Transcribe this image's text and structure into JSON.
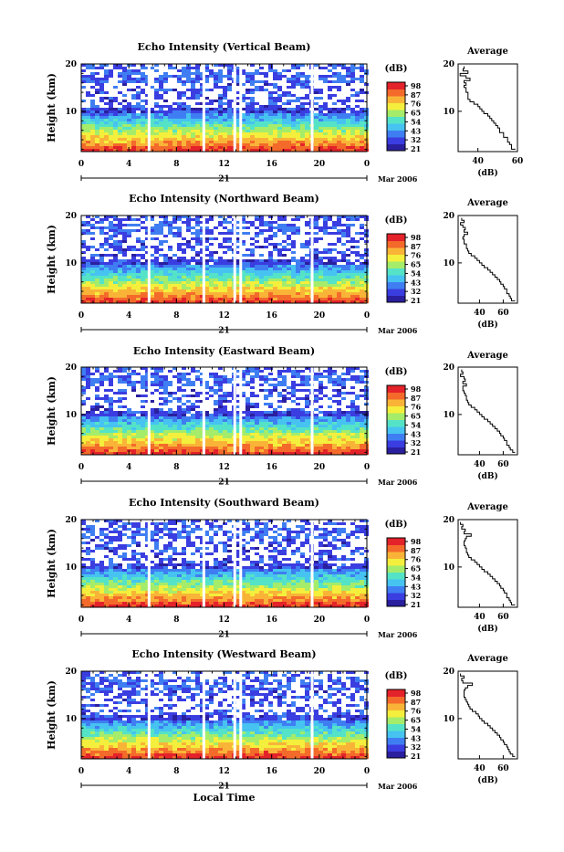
{
  "chart_data": [
    {
      "type": "heatmap",
      "title": "Echo Intensity (Vertical Beam)",
      "ylabel": "Height (km)",
      "yticks": [
        "20",
        "10"
      ],
      "ylim": [
        1.5,
        20
      ],
      "xticks": [
        "0",
        "4",
        "8",
        "12",
        "16",
        "20",
        "0"
      ],
      "xlim": [
        0,
        24
      ],
      "date_day": "21",
      "date_suffix": "Mar 2006",
      "colorbar_unit": "(dB)",
      "colorbar_ticks": [
        "98",
        "87",
        "76",
        "65",
        "54",
        "43",
        "32",
        "21"
      ],
      "gaps_hours": [
        5.7,
        10.3,
        12.9,
        13.4,
        19.4
      ],
      "avg_title": "Average",
      "avg_xlabel": "(dB)",
      "avg_xticks": [
        "40",
        "60"
      ],
      "avg_xlim": [
        30,
        60
      ],
      "avg_yticks": [
        "20",
        "10"
      ],
      "avg_profile": {
        "height": [
          19.5,
          19,
          18.5,
          18,
          17.5,
          17,
          16.5,
          16,
          15.5,
          15,
          14.5,
          14,
          13.5,
          13,
          12.5,
          12,
          11.5,
          11,
          10.5,
          10,
          9.5,
          9,
          8.5,
          8,
          7.5,
          7,
          6.5,
          6,
          5.5,
          5,
          4.5,
          4,
          3.5,
          3,
          2.5,
          2
        ],
        "db": [
          33,
          32.5,
          35,
          31,
          34,
          36,
          33,
          34,
          33,
          34,
          34,
          35,
          35,
          35,
          36,
          38,
          40,
          41,
          42,
          43,
          45,
          46,
          47,
          48,
          49,
          50,
          51,
          51,
          53,
          53,
          55,
          55,
          56,
          57,
          57,
          59
        ]
      }
    },
    {
      "type": "heatmap",
      "title": "Echo Intensity (Northward Beam)",
      "ylabel": "Height (km)",
      "yticks": [
        "20",
        "10"
      ],
      "ylim": [
        1.5,
        20
      ],
      "xticks": [
        "0",
        "4",
        "8",
        "12",
        "16",
        "20",
        "0"
      ],
      "xlim": [
        0,
        24
      ],
      "date_day": "21",
      "date_suffix": "Mar 2006",
      "colorbar_unit": "(dB)",
      "colorbar_ticks": [
        "98",
        "87",
        "76",
        "65",
        "54",
        "43",
        "32",
        "21"
      ],
      "gaps_hours": [
        5.7,
        10.3,
        12.9,
        13.4,
        19.4
      ],
      "avg_title": "Average",
      "avg_xlabel": "(dB)",
      "avg_xticks": [
        "40",
        "60"
      ],
      "avg_xlim": [
        22,
        72
      ],
      "avg_yticks": [
        "20",
        "10"
      ],
      "avg_profile": {
        "height": [
          19.5,
          19,
          18.5,
          18,
          17.5,
          17,
          16.5,
          16,
          15.5,
          15,
          14.5,
          14,
          13.5,
          13,
          12.5,
          12,
          11.5,
          11,
          10.5,
          10,
          9.5,
          9,
          8.5,
          8,
          7.5,
          7,
          6.5,
          6,
          5.5,
          5,
          4.5,
          4,
          3.5,
          3,
          2.5,
          2
        ],
        "db": [
          25,
          27,
          24,
          26,
          28,
          27,
          30,
          27,
          26,
          27,
          27,
          29,
          29,
          30,
          31,
          33,
          36,
          38,
          40,
          42,
          44,
          47,
          49,
          51,
          53,
          55,
          57,
          58,
          60,
          61,
          63,
          63,
          65,
          66,
          67,
          70
        ]
      }
    },
    {
      "type": "heatmap",
      "title": "Echo Intensity (Eastward Beam)",
      "ylabel": "Height (km)",
      "yticks": [
        "20",
        "10"
      ],
      "ylim": [
        1.5,
        20
      ],
      "xticks": [
        "0",
        "4",
        "8",
        "12",
        "16",
        "20",
        "0"
      ],
      "xlim": [
        0,
        24
      ],
      "date_day": "21",
      "date_suffix": "Mar 2006",
      "colorbar_unit": "(dB)",
      "colorbar_ticks": [
        "98",
        "87",
        "76",
        "65",
        "54",
        "43",
        "32",
        "21"
      ],
      "gaps_hours": [
        5.7,
        10.3,
        12.9,
        13.4,
        19.4
      ],
      "avg_title": "Average",
      "avg_xlabel": "(dB)",
      "avg_xticks": [
        "40",
        "60"
      ],
      "avg_xlim": [
        22,
        72
      ],
      "avg_yticks": [
        "20",
        "10"
      ],
      "avg_profile": {
        "height": [
          19.5,
          19,
          18.5,
          18,
          17.5,
          17,
          16.5,
          16,
          15.5,
          15,
          14.5,
          14,
          13.5,
          13,
          12.5,
          12,
          11.5,
          11,
          10.5,
          10,
          9.5,
          9,
          8.5,
          8,
          7.5,
          7,
          6.5,
          6,
          5.5,
          5,
          4.5,
          4,
          3.5,
          3,
          2.5,
          2
        ],
        "db": [
          25,
          26,
          24,
          27,
          28,
          26,
          29,
          26,
          26,
          27,
          28,
          29,
          29,
          30,
          31,
          33,
          36,
          38,
          40,
          42,
          44,
          47,
          49,
          51,
          53,
          55,
          57,
          58,
          60,
          61,
          63,
          63,
          65,
          66,
          68,
          70
        ]
      }
    },
    {
      "type": "heatmap",
      "title": "Echo Intensity (Southward Beam)",
      "ylabel": "Height (km)",
      "yticks": [
        "20",
        "10"
      ],
      "ylim": [
        1.5,
        20
      ],
      "xticks": [
        "0",
        "4",
        "8",
        "12",
        "16",
        "20",
        "0"
      ],
      "xlim": [
        0,
        24
      ],
      "date_day": "21",
      "date_suffix": "Mar 2006",
      "colorbar_unit": "(dB)",
      "colorbar_ticks": [
        "98",
        "87",
        "76",
        "65",
        "54",
        "43",
        "32",
        "21"
      ],
      "gaps_hours": [
        5.7,
        10.3,
        12.9,
        13.4,
        19.4
      ],
      "avg_title": "Average",
      "avg_xlabel": "(dB)",
      "avg_xticks": [
        "40",
        "60"
      ],
      "avg_xlim": [
        22,
        72
      ],
      "avg_yticks": [
        "20",
        "10"
      ],
      "avg_profile": {
        "height": [
          19.5,
          19,
          18.5,
          18,
          17.5,
          17,
          16.5,
          16,
          15.5,
          15,
          14.5,
          14,
          13.5,
          13,
          12.5,
          12,
          11.5,
          11,
          10.5,
          10,
          9.5,
          9,
          8.5,
          8,
          7.5,
          7,
          6.5,
          6,
          5.5,
          5,
          4.5,
          4,
          3.5,
          3,
          2.5,
          2
        ],
        "db": [
          24,
          26,
          25,
          28,
          27,
          33,
          29,
          28,
          27,
          27,
          28,
          29,
          29,
          30,
          31,
          33,
          36,
          38,
          40,
          42,
          44,
          47,
          49,
          51,
          53,
          55,
          57,
          58,
          60,
          61,
          63,
          63,
          65,
          66,
          67,
          70
        ]
      }
    },
    {
      "type": "heatmap",
      "title": "Echo Intensity (Westward Beam)",
      "ylabel": "Height (km)",
      "yticks": [
        "20",
        "10"
      ],
      "ylim": [
        1.5,
        20
      ],
      "xticks": [
        "0",
        "4",
        "8",
        "12",
        "16",
        "20",
        "0"
      ],
      "xlim": [
        0,
        24
      ],
      "date_day": "21",
      "date_suffix": "Mar 2006",
      "xlabel": "Local Time",
      "colorbar_unit": "(dB)",
      "colorbar_ticks": [
        "98",
        "87",
        "76",
        "65",
        "54",
        "43",
        "32",
        "21"
      ],
      "gaps_hours": [
        5.7,
        10.3,
        12.9,
        13.4,
        19.4
      ],
      "avg_title": "Average",
      "avg_xlabel": "(dB)",
      "avg_xticks": [
        "40",
        "60"
      ],
      "avg_xlim": [
        22,
        72
      ],
      "avg_yticks": [
        "20",
        "10"
      ],
      "avg_profile": {
        "height": [
          19.5,
          19,
          18.5,
          18,
          17.5,
          17,
          16.5,
          16,
          15.5,
          15,
          14.5,
          14,
          13.5,
          13,
          12.5,
          12,
          11.5,
          11,
          10.5,
          10,
          9.5,
          9,
          8.5,
          8,
          7.5,
          7,
          6.5,
          6,
          5.5,
          5,
          4.5,
          4,
          3.5,
          3,
          2.5,
          2
        ],
        "db": [
          24,
          27,
          25,
          26,
          34,
          30,
          28,
          27,
          27,
          27,
          28,
          29,
          30,
          31,
          32,
          34,
          37,
          39,
          40,
          42,
          44,
          47,
          49,
          51,
          53,
          55,
          57,
          58,
          60,
          61,
          63,
          64,
          65,
          66,
          68,
          70
        ]
      }
    }
  ],
  "colors": {
    "colormap": [
      "#2a1f9e",
      "#3a3de0",
      "#3f7ef2",
      "#46c3f0",
      "#55e3c7",
      "#a5ec6a",
      "#f4ef3c",
      "#f9b438",
      "#f36a2a",
      "#e4222a"
    ],
    "background": "#ffffff",
    "axis": "#000000"
  }
}
